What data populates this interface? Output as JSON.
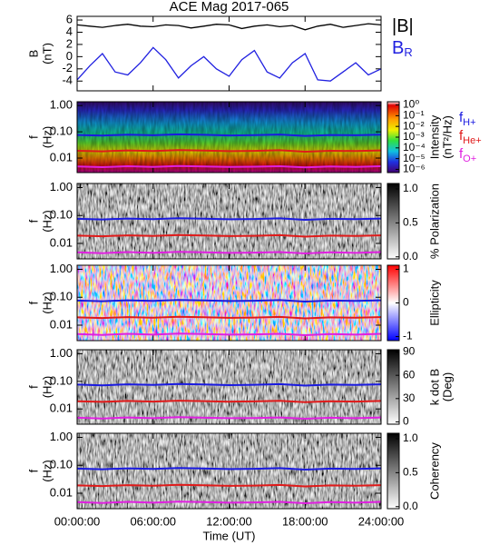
{
  "chart_data": [
    {
      "type": "line",
      "title": "ACE Mag 2017-065",
      "ylabel": [
        "B",
        "(nT)"
      ],
      "ylim": [
        -5.6,
        6.6
      ],
      "yticks": [
        -4,
        -2,
        0,
        2,
        4,
        6
      ],
      "xlim": [
        0,
        24
      ],
      "x": [
        0,
        1,
        2,
        3,
        4,
        5,
        6,
        7,
        8,
        9,
        10,
        11,
        12,
        13,
        14,
        15,
        16,
        17,
        18,
        19,
        20,
        21,
        22,
        23,
        24
      ],
      "series": [
        {
          "name": "|B|",
          "color": "#000000",
          "values": [
            5.2,
            5.0,
            4.8,
            5.1,
            5.3,
            5.0,
            4.9,
            5.2,
            5.1,
            4.7,
            5.0,
            5.3,
            5.2,
            4.6,
            5.0,
            5.2,
            4.9,
            5.1,
            4.4,
            5.0,
            5.3,
            4.8,
            5.1,
            5.4,
            5.2
          ]
        },
        {
          "name": "B",
          "sub": "R",
          "color": "#2020e0",
          "values": [
            -3.8,
            -1.5,
            0.5,
            -2.5,
            -3.0,
            -1.0,
            1.5,
            -0.5,
            -3.5,
            -1.5,
            0.0,
            -2.0,
            -3.2,
            -0.5,
            1.0,
            -2.5,
            -3.5,
            -1.0,
            0.5,
            -3.8,
            -4.0,
            -2.5,
            -1.0,
            -3.0,
            -2.0
          ]
        }
      ]
    },
    {
      "type": "heatmap",
      "ylabel": [
        "f",
        "(Hz)"
      ],
      "log": true,
      "ylim": [
        0.0028,
        1.4
      ],
      "xlim": [
        0,
        24
      ],
      "yticks": [
        {
          "value": 1,
          "label": "1.00"
        },
        {
          "value": 0.1,
          "label": "0.10"
        },
        {
          "value": 0.01,
          "label": "0.01"
        }
      ],
      "colorbar": {
        "label": [
          "Intensity",
          "(nT²/Hz)"
        ],
        "log": true,
        "lim": [
          5e-07,
          2
        ],
        "ticks": [
          {
            "value": 1,
            "label": "10⁰"
          },
          {
            "value": 0.1,
            "label": "10⁻¹"
          },
          {
            "value": 0.01,
            "label": "10⁻²"
          },
          {
            "value": 0.001,
            "label": "10⁻³"
          },
          {
            "value": 0.0001,
            "label": "10⁻⁴"
          },
          {
            "value": 1e-05,
            "label": "10⁻⁵"
          },
          {
            "value": 1e-06,
            "label": "10⁻⁶"
          }
        ]
      },
      "x": [
        0,
        2,
        4,
        6,
        8,
        10,
        12,
        14,
        16,
        18,
        20,
        22,
        24
      ],
      "series": [
        {
          "name": "f",
          "sub": "H+",
          "color": "#1a1ae0",
          "values": [
            0.076,
            0.072,
            0.078,
            0.074,
            0.08,
            0.077,
            0.073,
            0.075,
            0.079,
            0.07,
            0.076,
            0.074,
            0.078
          ]
        },
        {
          "name": "f",
          "sub": "He+",
          "color": "#e01a1a",
          "values": [
            0.019,
            0.018,
            0.0195,
            0.0185,
            0.02,
            0.0192,
            0.0183,
            0.0188,
            0.0198,
            0.0175,
            0.019,
            0.0185,
            0.0195
          ]
        },
        {
          "name": "f",
          "sub": "O+",
          "color": "#e020e0",
          "values": [
            0.0048,
            0.0045,
            0.0049,
            0.0046,
            0.005,
            0.0048,
            0.0046,
            0.0047,
            0.0049,
            0.0044,
            0.0048,
            0.0046,
            0.0049
          ]
        }
      ]
    },
    {
      "type": "heatmap",
      "ylabel": [
        "f",
        "(Hz)"
      ],
      "log": true,
      "ylim": [
        0.0028,
        1.4
      ],
      "xlim": [
        0,
        24
      ],
      "yticks": [
        {
          "value": 1,
          "label": "1.00"
        },
        {
          "value": 0.1,
          "label": "0.10"
        },
        {
          "value": 0.01,
          "label": "0.01"
        }
      ],
      "colorbar": {
        "label": [
          "% Polarization"
        ],
        "log": false,
        "lim": [
          -0.03,
          1.08
        ],
        "ticks": [
          {
            "value": 0,
            "label": "0.0"
          },
          {
            "value": 0.5,
            "label": "0.5"
          },
          {
            "value": 1,
            "label": "1.0"
          }
        ]
      },
      "x": [
        0,
        2,
        4,
        6,
        8,
        10,
        12,
        14,
        16,
        18,
        20,
        22,
        24
      ],
      "series": [
        {
          "color": "#1a1ae0",
          "values": [
            0.076,
            0.072,
            0.078,
            0.074,
            0.08,
            0.077,
            0.073,
            0.075,
            0.079,
            0.07,
            0.076,
            0.074,
            0.078
          ]
        },
        {
          "color": "#e01a1a",
          "values": [
            0.019,
            0.018,
            0.0195,
            0.0185,
            0.02,
            0.0192,
            0.0183,
            0.0188,
            0.0198,
            0.0175,
            0.019,
            0.0185,
            0.0195
          ]
        },
        {
          "color": "#e020e0",
          "values": [
            0.0048,
            0.0045,
            0.0049,
            0.0046,
            0.005,
            0.0048,
            0.0046,
            0.0047,
            0.0049,
            0.0044,
            0.0048,
            0.0046,
            0.0049
          ]
        }
      ]
    },
    {
      "type": "heatmap",
      "ylabel": [
        "f",
        "(Hz)"
      ],
      "log": true,
      "ylim": [
        0.0028,
        1.4
      ],
      "xlim": [
        0,
        24
      ],
      "yticks": [
        {
          "value": 1,
          "label": "1.00"
        },
        {
          "value": 0.1,
          "label": "0.10"
        },
        {
          "value": 0.01,
          "label": "0.01"
        }
      ],
      "colorbar": {
        "label": [
          "Ellipticity"
        ],
        "log": false,
        "lim": [
          -1.12,
          1.12
        ],
        "ticks": [
          1,
          0,
          -1
        ]
      },
      "x": [
        0,
        2,
        4,
        6,
        8,
        10,
        12,
        14,
        16,
        18,
        20,
        22,
        24
      ],
      "series": [
        {
          "color": "#1a1ae0",
          "values": [
            0.076,
            0.072,
            0.078,
            0.074,
            0.08,
            0.077,
            0.073,
            0.075,
            0.079,
            0.07,
            0.076,
            0.074,
            0.078
          ]
        },
        {
          "color": "#e01a1a",
          "values": [
            0.019,
            0.018,
            0.0195,
            0.0185,
            0.02,
            0.0192,
            0.0183,
            0.0188,
            0.0198,
            0.0175,
            0.019,
            0.0185,
            0.0195
          ]
        },
        {
          "color": "#e020e0",
          "values": [
            0.0048,
            0.0045,
            0.0049,
            0.0046,
            0.005,
            0.0048,
            0.0046,
            0.0047,
            0.0049,
            0.0044,
            0.0048,
            0.0046,
            0.0049
          ]
        }
      ]
    },
    {
      "type": "heatmap",
      "ylabel": [
        "f",
        "(Hz)"
      ],
      "log": true,
      "ylim": [
        0.0028,
        1.4
      ],
      "xlim": [
        0,
        24
      ],
      "yticks": [
        {
          "value": 1,
          "label": "1.00"
        },
        {
          "value": 0.1,
          "label": "0.10"
        },
        {
          "value": 0.01,
          "label": "0.01"
        }
      ],
      "colorbar": {
        "label": [
          "k dot B",
          "(Deg)"
        ],
        "log": false,
        "lim": [
          -3,
          93
        ],
        "ticks": [
          0,
          30,
          60,
          90
        ]
      },
      "x": [
        0,
        2,
        4,
        6,
        8,
        10,
        12,
        14,
        16,
        18,
        20,
        22,
        24
      ],
      "series": [
        {
          "color": "#1a1ae0",
          "values": [
            0.076,
            0.072,
            0.078,
            0.074,
            0.08,
            0.077,
            0.073,
            0.075,
            0.079,
            0.07,
            0.076,
            0.074,
            0.078
          ]
        },
        {
          "color": "#e01a1a",
          "values": [
            0.019,
            0.018,
            0.0195,
            0.0185,
            0.02,
            0.0192,
            0.0183,
            0.0188,
            0.0198,
            0.0175,
            0.019,
            0.0185,
            0.0195
          ]
        },
        {
          "color": "#e020e0",
          "values": [
            0.0048,
            0.0045,
            0.0049,
            0.0046,
            0.005,
            0.0048,
            0.0046,
            0.0047,
            0.0049,
            0.0044,
            0.0048,
            0.0046,
            0.0049
          ]
        }
      ]
    },
    {
      "type": "heatmap",
      "ylabel": [
        "f",
        "(Hz)"
      ],
      "log": true,
      "ylim": [
        0.0028,
        1.4
      ],
      "xlim": [
        0,
        24
      ],
      "yticks": [
        {
          "value": 1,
          "label": "1.00"
        },
        {
          "value": 0.1,
          "label": "0.10"
        },
        {
          "value": 0.01,
          "label": "0.01"
        }
      ],
      "colorbar": {
        "label": [
          "Coherency"
        ],
        "log": false,
        "lim": [
          -0.03,
          1.08
        ],
        "ticks": [
          {
            "value": 0,
            "label": "0.0"
          },
          {
            "value": 0.5,
            "label": "0.5"
          },
          {
            "value": 1,
            "label": "1.0"
          }
        ]
      },
      "x": [
        0,
        2,
        4,
        6,
        8,
        10,
        12,
        14,
        16,
        18,
        20,
        22,
        24
      ],
      "series": [
        {
          "color": "#1a1ae0",
          "values": [
            0.076,
            0.072,
            0.078,
            0.074,
            0.08,
            0.077,
            0.073,
            0.075,
            0.079,
            0.07,
            0.076,
            0.074,
            0.078
          ]
        },
        {
          "color": "#e01a1a",
          "values": [
            0.019,
            0.018,
            0.0195,
            0.0185,
            0.02,
            0.0192,
            0.0183,
            0.0188,
            0.0198,
            0.0175,
            0.019,
            0.0185,
            0.0195
          ]
        },
        {
          "color": "#e020e0",
          "values": [
            0.0048,
            0.0045,
            0.0049,
            0.0046,
            0.005,
            0.0048,
            0.0046,
            0.0047,
            0.0049,
            0.0044,
            0.0048,
            0.0046,
            0.0049
          ]
        }
      ],
      "xlabel": "Time (UT)",
      "xticks": [
        {
          "value": 0,
          "label": "00:00:00"
        },
        {
          "value": 6,
          "label": "06:00:00"
        },
        {
          "value": 12,
          "label": "12:00:00"
        },
        {
          "value": 18,
          "label": "18:00:00"
        },
        {
          "value": 24,
          "label": "24:00:00"
        }
      ]
    }
  ]
}
